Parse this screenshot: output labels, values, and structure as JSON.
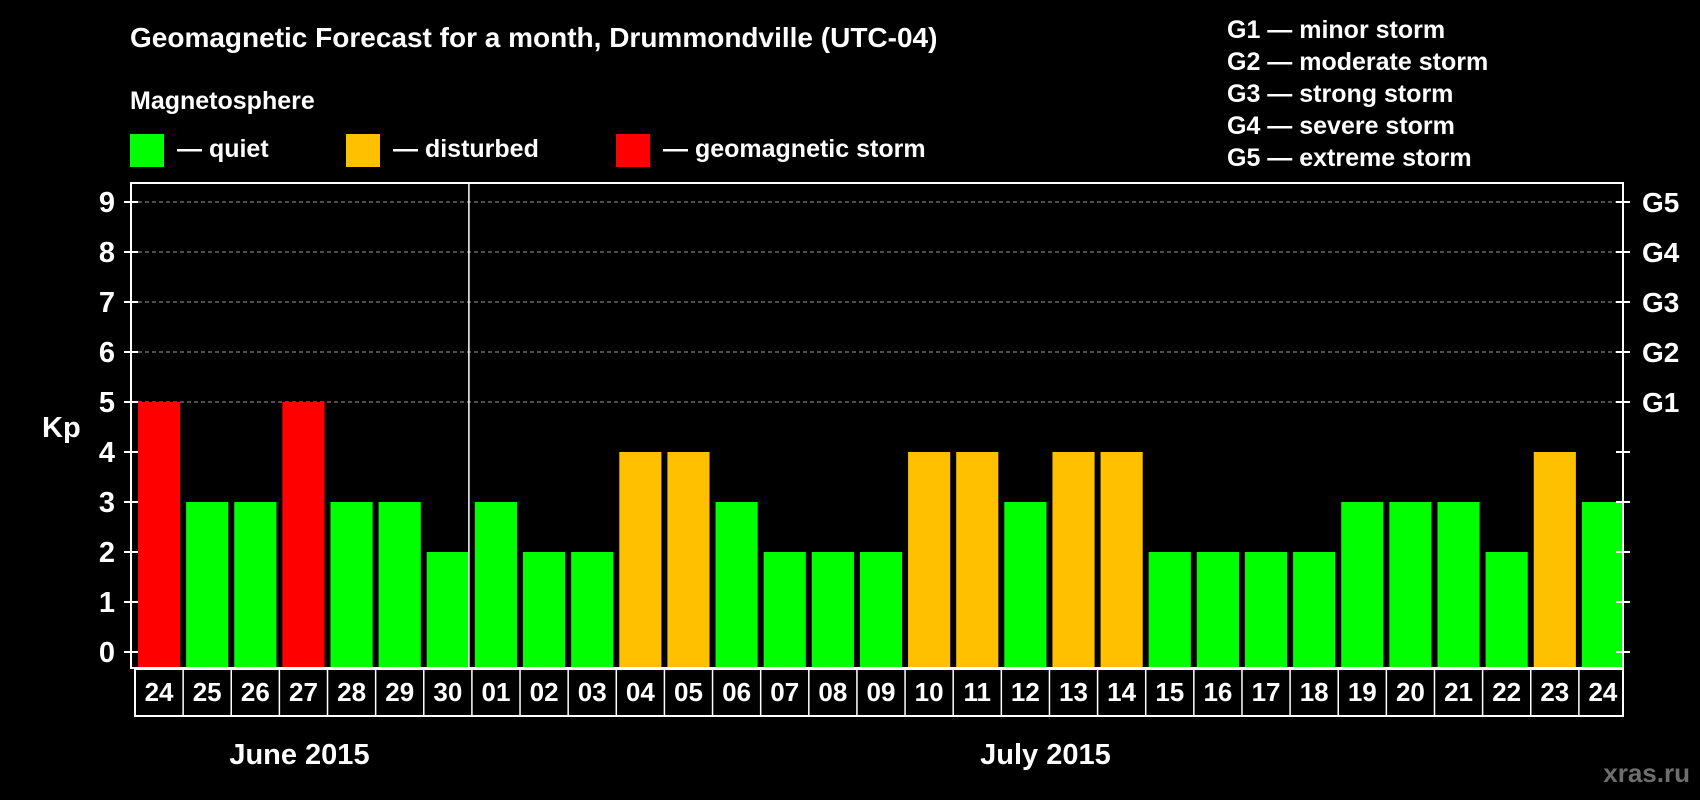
{
  "chart_data": {
    "type": "bar",
    "title": "Geomagnetic Forecast for a month, Drummondville (UTC-04)",
    "legend": {
      "heading": "Magnetosphere",
      "items": [
        {
          "label": "— quiet",
          "color": "#00ff00"
        },
        {
          "label": "— disturbed",
          "color": "#ffc000"
        },
        {
          "label": "— geomagnetic storm",
          "color": "#ff0000"
        }
      ]
    },
    "storm_scale": [
      "G1 — minor storm",
      "G2 — moderate storm",
      "G3 — strong storm",
      "G4 — severe storm",
      "G5 — extreme storm"
    ],
    "ylabel": "Kp",
    "ylim": [
      0,
      9
    ],
    "yticks": [
      "0",
      "1",
      "2",
      "3",
      "4",
      "5",
      "6",
      "7",
      "8",
      "9"
    ],
    "right_axis_labels": [
      {
        "value": 5,
        "label": "G1"
      },
      {
        "value": 6,
        "label": "G2"
      },
      {
        "value": 7,
        "label": "G3"
      },
      {
        "value": 8,
        "label": "G4"
      },
      {
        "value": 9,
        "label": "G5"
      }
    ],
    "categories": [
      "24",
      "25",
      "26",
      "27",
      "28",
      "29",
      "30",
      "01",
      "02",
      "03",
      "04",
      "05",
      "06",
      "07",
      "08",
      "09",
      "10",
      "11",
      "12",
      "13",
      "14",
      "15",
      "16",
      "17",
      "18",
      "19",
      "20",
      "21",
      "22",
      "23",
      "24"
    ],
    "values": [
      5,
      3,
      3,
      5,
      3,
      3,
      2,
      3,
      2,
      2,
      4,
      4,
      3,
      2,
      2,
      2,
      4,
      4,
      3,
      4,
      4,
      2,
      2,
      2,
      2,
      3,
      3,
      3,
      2,
      4,
      3
    ],
    "months": [
      {
        "label": "June 2015",
        "start": 0,
        "end": 6
      },
      {
        "label": "July 2015",
        "start": 7,
        "end": 30
      }
    ],
    "grid": true,
    "colors": {
      "quiet": "#00ff00",
      "disturbed": "#ffc000",
      "storm": "#ff0000"
    }
  },
  "watermark": "xras.ru"
}
